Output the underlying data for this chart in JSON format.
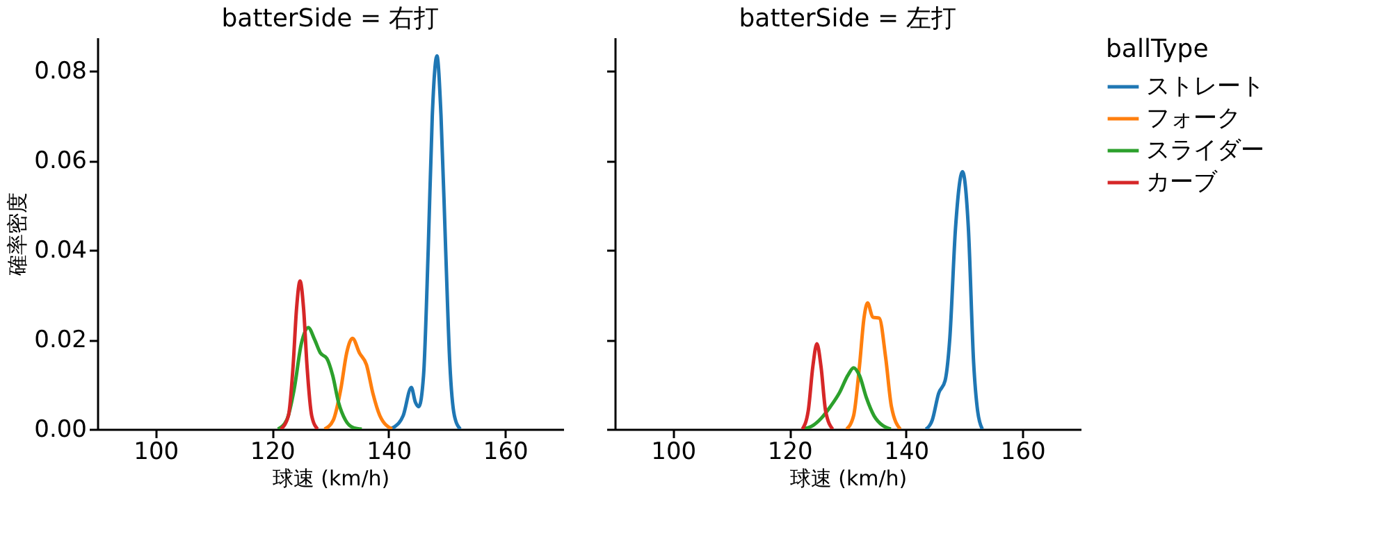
{
  "chart_data": [
    {
      "type": "line",
      "title": "batterSide = 右打",
      "xlabel": "球速 (km/h)",
      "ylabel": "確率密度",
      "xlim": [
        90,
        170
      ],
      "xticks": [
        100,
        120,
        140,
        160
      ],
      "ylim": [
        0,
        0.0875
      ],
      "yticks": [
        {
          "value": 0,
          "label": "0.00"
        },
        {
          "value": 0.02,
          "label": "0.02"
        },
        {
          "value": 0.04,
          "label": "0.04"
        },
        {
          "value": 0.06,
          "label": "0.06"
        },
        {
          "value": 0.08,
          "label": "0.08"
        }
      ],
      "grid": false,
      "legend": "right",
      "legend_title": "ballType",
      "series": [
        {
          "name": "ストレート",
          "color": "#1f77b4",
          "x": [
            140,
            141,
            142.5,
            143.9,
            144.6,
            145.2,
            146,
            146.8,
            147.5,
            148.3,
            149,
            149.8,
            150.5,
            151.3,
            152.3
          ],
          "values": [
            0,
            0.0005,
            0.003,
            0.0093,
            0.006,
            0.005,
            0.012,
            0.04,
            0.07,
            0.0834,
            0.07,
            0.04,
            0.015,
            0.003,
            0
          ]
        },
        {
          "name": "フォーク",
          "color": "#ff7f0e",
          "x": [
            129,
            130.5,
            131.8,
            132.8,
            133.8,
            135,
            136.2,
            137.3,
            138.5,
            140.6
          ],
          "values": [
            0,
            0.002,
            0.009,
            0.017,
            0.0203,
            0.017,
            0.0144,
            0.008,
            0.003,
            0
          ]
        },
        {
          "name": "スライダー",
          "color": "#2ca02c",
          "x": [
            121,
            122.5,
            123.8,
            125,
            126.2,
            127.3,
            128.3,
            129.4,
            130.4,
            131.4,
            132.6,
            134,
            135.4
          ],
          "values": [
            0,
            0.002,
            0.009,
            0.019,
            0.0227,
            0.02,
            0.017,
            0.0158,
            0.012,
            0.006,
            0.002,
            0.0003,
            0
          ]
        },
        {
          "name": "カーブ",
          "color": "#d62728",
          "x": [
            121.5,
            122.8,
            123.6,
            124.2,
            124.8,
            125.4,
            126,
            126.8,
            127.8
          ],
          "values": [
            0,
            0.003,
            0.014,
            0.027,
            0.0331,
            0.027,
            0.014,
            0.003,
            0
          ]
        }
      ]
    },
    {
      "type": "line",
      "title": "batterSide = 左打",
      "xlabel": "球速 (km/h)",
      "xlim": [
        90,
        170
      ],
      "xticks": [
        100,
        120,
        140,
        160
      ],
      "ylim": [
        0,
        0.0875
      ],
      "yticks": [
        {
          "value": 0,
          "label": null
        },
        {
          "value": 0.02,
          "label": null
        },
        {
          "value": 0.04,
          "label": null
        },
        {
          "value": 0.06,
          "label": null
        },
        {
          "value": 0.08,
          "label": null
        }
      ],
      "tick_labels": "x",
      "grid": false,
      "series": [
        {
          "name": "ストレート",
          "color": "#1f77b4",
          "x": [
            143.4,
            144.5,
            145.6,
            146.7,
            147.5,
            148.5,
            149.7,
            150.7,
            151.6,
            152.3,
            153.1
          ],
          "values": [
            0,
            0.002,
            0.008,
            0.0108,
            0.02,
            0.045,
            0.0575,
            0.045,
            0.015,
            0.004,
            0
          ]
        },
        {
          "name": "フォーク",
          "color": "#ff7f0e",
          "x": [
            129.8,
            131,
            132,
            132.8,
            133.4,
            134.3,
            135.4,
            136.5,
            137.5,
            139
          ],
          "values": [
            0,
            0.003,
            0.014,
            0.025,
            0.0282,
            0.025,
            0.0248,
            0.016,
            0.005,
            0
          ]
        },
        {
          "name": "スライダー",
          "color": "#2ca02c",
          "x": [
            122.2,
            124,
            125.5,
            127,
            128.6,
            130,
            131,
            132,
            133.2,
            134.5,
            136,
            137.4
          ],
          "values": [
            0,
            0.0008,
            0.0025,
            0.005,
            0.0082,
            0.012,
            0.0137,
            0.012,
            0.007,
            0.003,
            0.0008,
            0
          ]
        },
        {
          "name": "カーブ",
          "color": "#d62728",
          "x": [
            122.2,
            123.2,
            124,
            124.7,
            125.4,
            126.2,
            127.4
          ],
          "values": [
            0,
            0.004,
            0.014,
            0.0191,
            0.014,
            0.004,
            0
          ]
        }
      ]
    }
  ]
}
